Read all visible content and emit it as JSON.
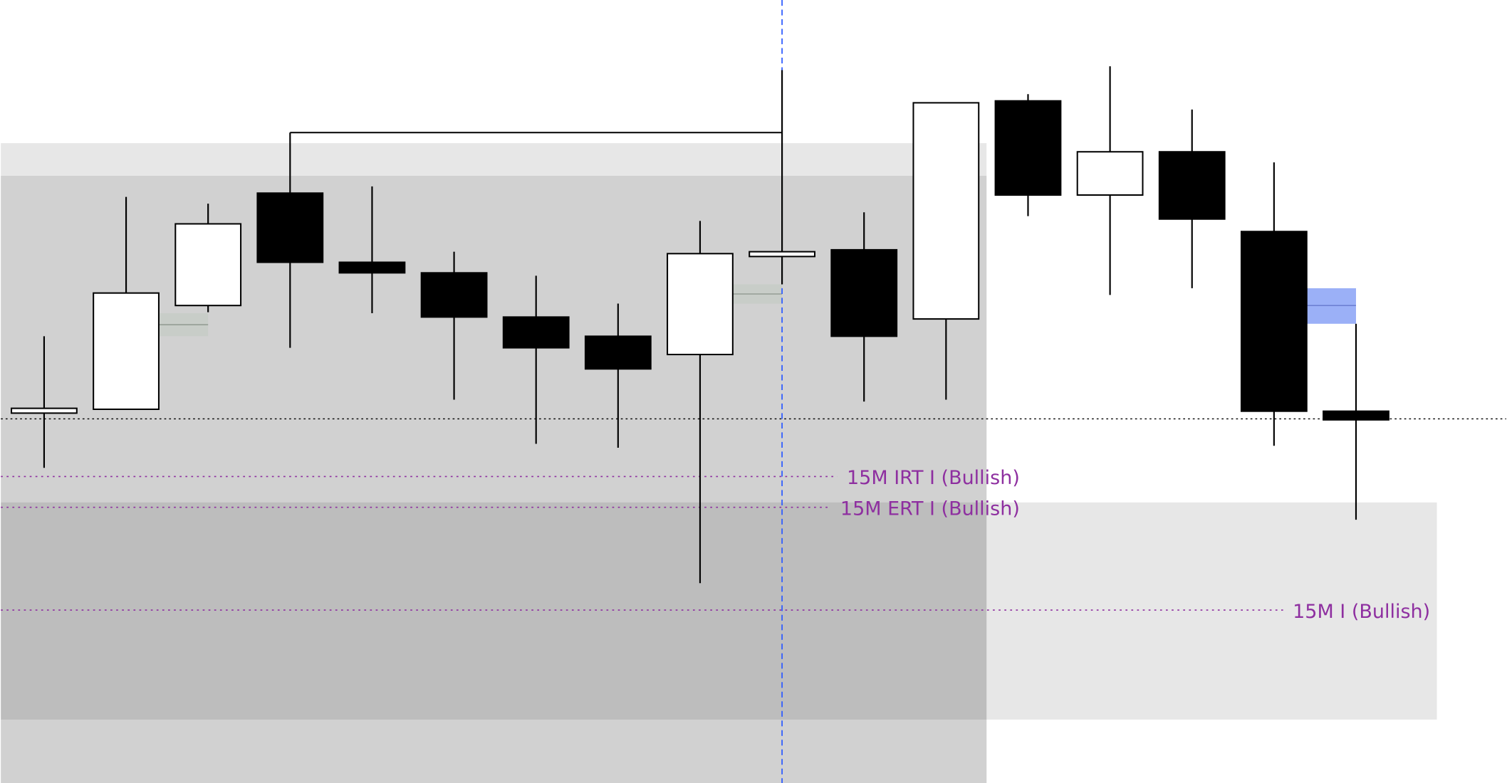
{
  "chart_data": {
    "type": "candlestick",
    "title": "",
    "price_range": [
      185,
      1000
    ],
    "colors": {
      "bullish_body": "#ffffff",
      "bearish_body": "#000000",
      "outline": "#000000",
      "zone": "#e7e7e7",
      "level_line": "#8e2fa0",
      "cursor_line": "#2d5bff",
      "gap_marker": "#c5ccc5",
      "highlight_gap": "#9bb0f7"
    },
    "candles": [
      {
        "open": 570,
        "high": 650,
        "low": 513,
        "close": 575
      },
      {
        "open": 574,
        "high": 795,
        "low": 574,
        "close": 695
      },
      {
        "open": 682,
        "high": 788,
        "low": 675,
        "close": 767
      },
      {
        "open": 799,
        "high": 862,
        "low": 638,
        "close": 727
      },
      {
        "open": 727,
        "high": 806,
        "low": 674,
        "close": 716
      },
      {
        "open": 716,
        "high": 738,
        "low": 584,
        "close": 670
      },
      {
        "open": 670,
        "high": 713,
        "low": 538,
        "close": 638
      },
      {
        "open": 650,
        "high": 684,
        "low": 534,
        "close": 616
      },
      {
        "open": 631,
        "high": 770,
        "low": 393,
        "close": 736
      },
      {
        "open": 733,
        "high": 927,
        "low": 704,
        "close": 738
      },
      {
        "open": 740,
        "high": 779,
        "low": 582,
        "close": 650
      },
      {
        "open": 668,
        "high": 893,
        "low": 584,
        "close": 893
      },
      {
        "open": 895,
        "high": 902,
        "low": 775,
        "close": 797
      },
      {
        "open": 797,
        "high": 931,
        "low": 693,
        "close": 842
      },
      {
        "open": 842,
        "high": 886,
        "low": 700,
        "close": 772
      },
      {
        "open": 759,
        "high": 831,
        "low": 536,
        "close": 572
      },
      {
        "open": 572,
        "high": 663,
        "low": 459,
        "close": 563
      }
    ],
    "zones": [
      {
        "from_candle": 0,
        "to_candle": 12,
        "top": 851,
        "bottom": 185
      },
      {
        "from_candle": 0,
        "to_candle": 12,
        "top": 817,
        "bottom": 185
      },
      {
        "from_candle": 0,
        "to_candle": 17,
        "top": 477,
        "bottom": 251
      }
    ],
    "gaps": [
      {
        "candle": 1,
        "top": 674,
        "mid": 662,
        "bottom": 650,
        "kind": "neutral"
      },
      {
        "candle": 8,
        "top": 704,
        "mid": 694,
        "bottom": 684,
        "kind": "neutral"
      },
      {
        "candle": 15,
        "top": 700,
        "mid": 682,
        "bottom": 663,
        "kind": "highlight"
      }
    ],
    "swing_high_line": {
      "price": 862,
      "from_candle": 3,
      "to_candle": 9
    },
    "reference_line": {
      "price": 564,
      "style": "dotted"
    },
    "levels": [
      {
        "label": "15M IRT I (Bullish)",
        "price": 504
      },
      {
        "label": "15M ERT I (Bullish)",
        "price": 472
      },
      {
        "label": "15M I (Bullish)",
        "price": 365
      }
    ],
    "cursor_candle": 9
  }
}
